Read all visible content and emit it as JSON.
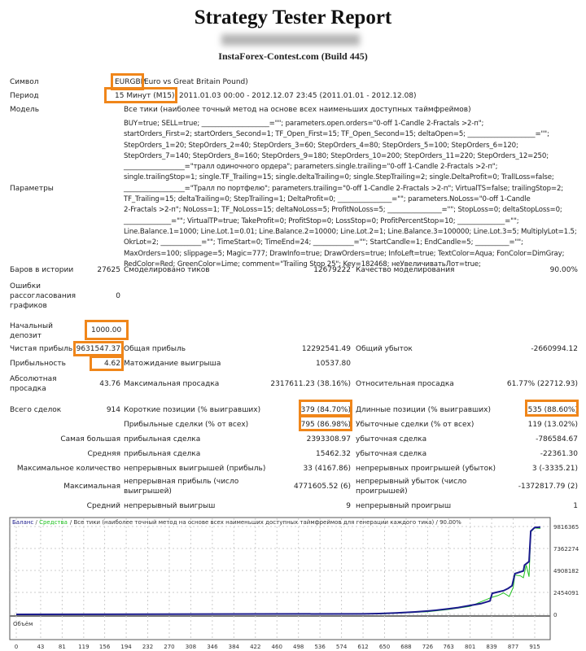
{
  "header": {
    "title": "Strategy Tester Report",
    "subtitle": "InstaForex-Contest.com (Build 445)"
  },
  "info": {
    "symbol_label": "Символ",
    "symbol_code": "EURGBP",
    "symbol_desc": "Euro vs Great Britain Pound)",
    "period_label": "Период",
    "period_tf": "15 Минут (M15)",
    "period_range": "2011.01.03 00:00 - 2012.12.07 23:45 (2011.01.01 - 2012.12.08)",
    "model_label": "Модель",
    "model_value": "Все тики (наиболее точный метод на основе всех наименьших доступных таймфреймов)",
    "params_label": "Параметры",
    "params_value": "BUY=true; SELL=true; ____________________=\"\"; parameters.open.orders=\"0-off 1-Candle 2-Fractals >2-п\";\nstartOrders_First=2; startOrders_Second=1; TF_Open_First=15; TF_Open_Second=15; deltaOpen=5; ____________________=\"\";\nStepOrders_1=20; StepOrders_2=40; StepOrders_3=60; StepOrders_4=80; StepOrders_5=100; StepOrders_6=120;\nStepOrders_7=140; StepOrders_8=160; StepOrders_9=180; StepOrders_10=200; StepOrders_11=220; StepOrders_12=250;\n__________________=\"тралл одиночного ордера\"; parameters.single.trailing=\"0-off 1-Candle 2-Fractals >2-п\";\nsingle.trailingStop=1; single.TF_Trailing=15; single.deltaTrailing=0; single.StepTrailing=2; single.DeltaProfit=0; TrallLoss=false;\n__________________=\"Тралл по портфелю\"; parameters.trailing=\"0-off 1-Candle 2-Fractals >2-п\"; VirtualTS=false; trailingStop=2;\nTF_Trailing=15; deltaTrailing=0; StepTrailing=1; DeltaProfit=0; ________________=\"\"; parameters.NoLoss=\"0-off 1-Candle\n2-Fractals >2-п\"; NoLoss=1; TF_NoLoss=15; deltaNoLoss=5; ProfitNoLoss=5; ________________=\"\"; StopLoss=0; deltaStopLoss=0;\n______________=\"\"; VirtualTP=true; TakeProfit=0; ProfitStop=0; LossStop=0; ProfitPercentStop=10; ______________=\"\";\nLine.Balance.1=1000; Line.Lot.1=0.01; Line.Balance.2=10000; Line.Lot.2=1; Line.Balance.3=100000; Line.Lot.3=5; MultiplyLot=1.5;\nOkrLot=2; ____________=\"\"; TimeStart=0; TimeEnd=24; ____________=\"\"; StartCandle=1; EndCandle=5; __________=\"\";\nMaxOrders=100; slippage=5; Magic=777; DrawInfo=true; DrawOrders=true; InfoLeft=true; TextColor=Aqua; FonColor=DimGray;\nRedColor=Red; GreenColor=Lime; comment=\"Trailing Stop 25\"; Key=182468; неУвеличиватьЛот=true;"
  },
  "stats": {
    "bars_label": "Баров в истории",
    "bars": "27625",
    "ticks_label": "Смоделировано тиков",
    "ticks": "12679222",
    "quality_label": "Качество моделирования",
    "quality": "90.00%",
    "errors_label": "Ошибки рассогласования графиков",
    "errors": "0",
    "deposit_label": "Начальный депозит",
    "deposit": "1000.00",
    "net_label": "Чистая прибыль",
    "net": "9631547.37",
    "gross_profit_label": "Общая прибыль",
    "gross_profit": "12292541.49",
    "gross_loss_label": "Общий убыток",
    "gross_loss": "-2660994.12",
    "pf_label": "Прибыльность",
    "pf": "4.62",
    "expected_label": "Матожидание выигрыша",
    "expected": "10537.80",
    "abs_dd_label": "Абсолютная просадка",
    "abs_dd": "43.76",
    "max_dd_label": "Максимальная просадка",
    "max_dd": "2317611.23 (38.16%)",
    "rel_dd_label": "Относительная просадка",
    "rel_dd": "61.77% (22712.93)"
  },
  "trades": {
    "total_label": "Всего сделок",
    "total": "914",
    "short_label": "Короткие позиции (% выигравших)",
    "short": "379 (84.70%)",
    "long_label": "Длинные позиции (% выигравших)",
    "long": "535 (88.60%)",
    "win_label": "Прибыльные сделки (% от всех)",
    "win": "795 (86.98%)",
    "loss_label": "Убыточные сделки (% от всех)",
    "loss": "119 (13.02%)",
    "largest_label": "Самая большая",
    "largest_win_label": "прибыльная сделка",
    "largest_win": "2393308.97",
    "largest_loss_label": "убыточная сделка",
    "largest_loss": "-786584.67",
    "avg_label": "Средняя",
    "avg_win_label": "прибыльная сделка",
    "avg_win": "15462.32",
    "avg_loss_label": "убыточная сделка",
    "avg_loss": "-22361.30",
    "maxcount_label": "Максимальное количество",
    "maxcons_win_label": "непрерывных выигрышей (прибыль)",
    "maxcons_win": "33 (4167.86)",
    "maxcons_loss_label": "непрерывных проигрышей (убыток)",
    "maxcons_loss": "3 (-3335.21)",
    "max_label": "Максимальная",
    "maxprofit_label": "непрерывная прибыль (число выигрышей)",
    "maxprofit": "4771605.52 (6)",
    "maxloss_label": "непрерывный убыток (число проигрышей)",
    "maxloss": "-1372817.79 (2)",
    "avgcons_label": "Средний",
    "avgcons_win_label": "непрерывный выигрыш",
    "avgcons_win": "9",
    "avgcons_loss_label": "непрерывный проигрыш",
    "avgcons_loss": "1"
  },
  "chart_data": {
    "type": "line",
    "legend_balance": "Баланс",
    "legend_equity": "Средства",
    "legend_rest": "/ Все тики (наиболее точный метод на основе всех наименьших доступных таймфреймов для генерации каждого тика) / 90.00%",
    "volume_label": "Объём",
    "x_ticks": [
      0,
      43,
      81,
      119,
      156,
      194,
      232,
      270,
      308,
      346,
      384,
      422,
      460,
      498,
      536,
      574,
      612,
      650,
      688,
      726,
      763,
      801,
      839,
      877,
      915
    ],
    "y_ticks": [
      0,
      2454091,
      4908182,
      7362274,
      9816365
    ],
    "ylim": [
      0,
      9816365
    ],
    "grid": true,
    "colors": {
      "balance": "#1a1a8c",
      "equity": "#22c322",
      "highlight": "#f0861a"
    },
    "series": [
      {
        "name": "Баланс",
        "x": [
          0,
          612,
          640,
          670,
          700,
          726,
          740,
          763,
          780,
          801,
          820,
          836,
          840,
          860,
          868,
          875,
          880,
          895,
          897,
          905,
          908,
          915,
          925
        ],
        "y": [
          1000,
          60000,
          90000,
          160000,
          260000,
          380000,
          460000,
          620000,
          760000,
          1000000,
          1200000,
          1500000,
          2350000,
          2650000,
          2900000,
          3200000,
          4550000,
          4850000,
          5500000,
          5900000,
          9300000,
          9700000,
          9750000
        ]
      },
      {
        "name": "Средства",
        "x": [
          0,
          612,
          650,
          700,
          726,
          763,
          801,
          839,
          850,
          860,
          870,
          877,
          880,
          890,
          895,
          900,
          905,
          908,
          915,
          925
        ],
        "y": [
          1000,
          40000,
          70000,
          220000,
          300000,
          550000,
          900000,
          1900000,
          2100000,
          2400000,
          2000000,
          3000000,
          4400000,
          4300000,
          4100000,
          5500000,
          4200000,
          9200000,
          9650000,
          9600000
        ]
      }
    ]
  }
}
